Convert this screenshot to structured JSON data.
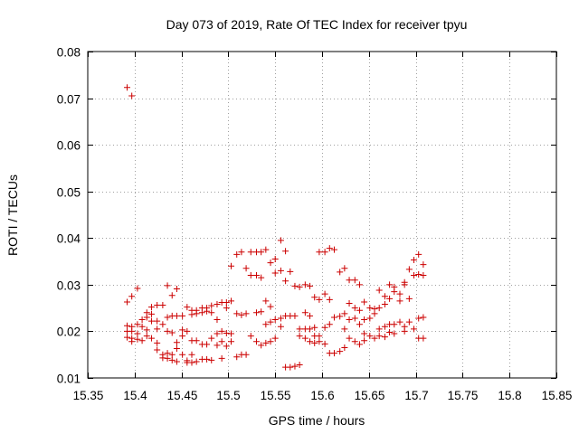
{
  "chart_data": {
    "type": "scatter",
    "title": "Day 073 of 2019, Rate Of TEC Index for receiver tpyu",
    "xlabel": "GPS time / hours",
    "ylabel": "ROTI / TECUs",
    "xlim": [
      15.35,
      15.85
    ],
    "ylim": [
      0.01,
      0.08
    ],
    "xticks": [
      15.35,
      15.4,
      15.45,
      15.5,
      15.55,
      15.6,
      15.65,
      15.7,
      15.75,
      15.8,
      15.85
    ],
    "xtick_labels": [
      "15.35",
      "15.4",
      "15.45",
      "15.5",
      "15.55",
      "15.6",
      "15.65",
      "15.7",
      "15.75",
      "15.8",
      "15.85"
    ],
    "yticks": [
      0.01,
      0.02,
      0.03,
      0.04,
      0.05,
      0.06,
      0.07,
      0.08
    ],
    "ytick_labels": [
      "0.01",
      "0.02",
      "0.03",
      "0.04",
      "0.05",
      "0.06",
      "0.07",
      "0.08"
    ],
    "grid": true,
    "marker": "+",
    "color": "#cc0000",
    "series": [
      {
        "name": "ROTI",
        "points": [
          [
            15.392,
            0.0723
          ],
          [
            15.397,
            0.0705
          ],
          [
            15.392,
            0.0263
          ],
          [
            15.397,
            0.0275
          ],
          [
            15.392,
            0.0212
          ],
          [
            15.392,
            0.02
          ],
          [
            15.392,
            0.0187
          ],
          [
            15.397,
            0.021
          ],
          [
            15.397,
            0.02
          ],
          [
            15.397,
            0.0185
          ],
          [
            15.397,
            0.0178
          ],
          [
            15.403,
            0.0292
          ],
          [
            15.403,
            0.0215
          ],
          [
            15.403,
            0.0195
          ],
          [
            15.403,
            0.0183
          ],
          [
            15.408,
            0.0225
          ],
          [
            15.408,
            0.021
          ],
          [
            15.408,
            0.018
          ],
          [
            15.413,
            0.024
          ],
          [
            15.413,
            0.023
          ],
          [
            15.413,
            0.0203
          ],
          [
            15.413,
            0.019
          ],
          [
            15.418,
            0.0252
          ],
          [
            15.418,
            0.0237
          ],
          [
            15.418,
            0.0222
          ],
          [
            15.418,
            0.0185
          ],
          [
            15.424,
            0.0256
          ],
          [
            15.424,
            0.0222
          ],
          [
            15.424,
            0.0205
          ],
          [
            15.424,
            0.0175
          ],
          [
            15.424,
            0.016
          ],
          [
            15.43,
            0.0256
          ],
          [
            15.43,
            0.0215
          ],
          [
            15.43,
            0.015
          ],
          [
            15.43,
            0.0143
          ],
          [
            15.435,
            0.0298
          ],
          [
            15.435,
            0.023
          ],
          [
            15.435,
            0.02
          ],
          [
            15.435,
            0.0153
          ],
          [
            15.435,
            0.0142
          ],
          [
            15.44,
            0.0277
          ],
          [
            15.44,
            0.0233
          ],
          [
            15.44,
            0.0197
          ],
          [
            15.44,
            0.015
          ],
          [
            15.44,
            0.0138
          ],
          [
            15.445,
            0.0291
          ],
          [
            15.445,
            0.0233
          ],
          [
            15.445,
            0.0176
          ],
          [
            15.445,
            0.0163
          ],
          [
            15.445,
            0.0135
          ],
          [
            15.451,
            0.0233
          ],
          [
            15.451,
            0.0203
          ],
          [
            15.451,
            0.019
          ],
          [
            15.451,
            0.015
          ],
          [
            15.456,
            0.0252
          ],
          [
            15.456,
            0.02
          ],
          [
            15.456,
            0.0137
          ],
          [
            15.456,
            0.0133
          ],
          [
            15.461,
            0.0245
          ],
          [
            15.461,
            0.0236
          ],
          [
            15.461,
            0.018
          ],
          [
            15.461,
            0.015
          ],
          [
            15.461,
            0.0133
          ],
          [
            15.466,
            0.0245
          ],
          [
            15.466,
            0.0238
          ],
          [
            15.466,
            0.018
          ],
          [
            15.466,
            0.0135
          ],
          [
            15.472,
            0.025
          ],
          [
            15.472,
            0.024
          ],
          [
            15.472,
            0.0172
          ],
          [
            15.472,
            0.014
          ],
          [
            15.477,
            0.025
          ],
          [
            15.477,
            0.0243
          ],
          [
            15.477,
            0.0172
          ],
          [
            15.477,
            0.014
          ],
          [
            15.482,
            0.0255
          ],
          [
            15.482,
            0.024
          ],
          [
            15.482,
            0.0185
          ],
          [
            15.482,
            0.0138
          ],
          [
            15.488,
            0.0258
          ],
          [
            15.488,
            0.0225
          ],
          [
            15.488,
            0.0195
          ],
          [
            15.488,
            0.017
          ],
          [
            15.493,
            0.0262
          ],
          [
            15.493,
            0.02
          ],
          [
            15.493,
            0.0178
          ],
          [
            15.493,
            0.0142
          ],
          [
            15.498,
            0.0262
          ],
          [
            15.498,
            0.025
          ],
          [
            15.498,
            0.0196
          ],
          [
            15.498,
            0.0168
          ],
          [
            15.503,
            0.034
          ],
          [
            15.503,
            0.0265
          ],
          [
            15.503,
            0.0195
          ],
          [
            15.503,
            0.0178
          ],
          [
            15.509,
            0.0365
          ],
          [
            15.509,
            0.0238
          ],
          [
            15.509,
            0.0145
          ],
          [
            15.514,
            0.037
          ],
          [
            15.514,
            0.0235
          ],
          [
            15.514,
            0.015
          ],
          [
            15.519,
            0.0335
          ],
          [
            15.519,
            0.0238
          ],
          [
            15.519,
            0.015
          ],
          [
            15.524,
            0.037
          ],
          [
            15.524,
            0.032
          ],
          [
            15.524,
            0.019
          ],
          [
            15.53,
            0.037
          ],
          [
            15.53,
            0.032
          ],
          [
            15.53,
            0.024
          ],
          [
            15.53,
            0.0178
          ],
          [
            15.535,
            0.037
          ],
          [
            15.535,
            0.0315
          ],
          [
            15.535,
            0.0242
          ],
          [
            15.535,
            0.017
          ],
          [
            15.54,
            0.0375
          ],
          [
            15.54,
            0.0265
          ],
          [
            15.54,
            0.0215
          ],
          [
            15.54,
            0.0175
          ],
          [
            15.545,
            0.0347
          ],
          [
            15.545,
            0.0253
          ],
          [
            15.545,
            0.022
          ],
          [
            15.545,
            0.0178
          ],
          [
            15.55,
            0.0355
          ],
          [
            15.55,
            0.0325
          ],
          [
            15.55,
            0.0225
          ],
          [
            15.55,
            0.0185
          ],
          [
            15.556,
            0.0395
          ],
          [
            15.556,
            0.033
          ],
          [
            15.556,
            0.0228
          ],
          [
            15.556,
            0.021
          ],
          [
            15.561,
            0.0372
          ],
          [
            15.561,
            0.0308
          ],
          [
            15.561,
            0.0233
          ],
          [
            15.561,
            0.0123
          ],
          [
            15.566,
            0.0328
          ],
          [
            15.566,
            0.0233
          ],
          [
            15.566,
            0.0123
          ],
          [
            15.571,
            0.0297
          ],
          [
            15.571,
            0.0233
          ],
          [
            15.571,
            0.0125
          ],
          [
            15.576,
            0.0295
          ],
          [
            15.576,
            0.0205
          ],
          [
            15.576,
            0.019
          ],
          [
            15.576,
            0.0128
          ],
          [
            15.582,
            0.03
          ],
          [
            15.582,
            0.024
          ],
          [
            15.582,
            0.0205
          ],
          [
            15.582,
            0.0185
          ],
          [
            15.587,
            0.0297
          ],
          [
            15.587,
            0.0233
          ],
          [
            15.587,
            0.0205
          ],
          [
            15.587,
            0.0178
          ],
          [
            15.592,
            0.0273
          ],
          [
            15.592,
            0.0208
          ],
          [
            15.592,
            0.019
          ],
          [
            15.592,
            0.0175
          ],
          [
            15.597,
            0.037
          ],
          [
            15.597,
            0.0268
          ],
          [
            15.597,
            0.019
          ],
          [
            15.597,
            0.0178
          ],
          [
            15.603,
            0.037
          ],
          [
            15.603,
            0.028
          ],
          [
            15.603,
            0.0208
          ],
          [
            15.603,
            0.0173
          ],
          [
            15.608,
            0.0378
          ],
          [
            15.608,
            0.0268
          ],
          [
            15.608,
            0.0215
          ],
          [
            15.608,
            0.0153
          ],
          [
            15.613,
            0.0375
          ],
          [
            15.613,
            0.023
          ],
          [
            15.613,
            0.0153
          ],
          [
            15.619,
            0.0327
          ],
          [
            15.619,
            0.0232
          ],
          [
            15.619,
            0.0157
          ],
          [
            15.624,
            0.0335
          ],
          [
            15.624,
            0.0238
          ],
          [
            15.624,
            0.0205
          ],
          [
            15.624,
            0.0165
          ],
          [
            15.629,
            0.031
          ],
          [
            15.629,
            0.026
          ],
          [
            15.629,
            0.0225
          ],
          [
            15.629,
            0.0185
          ],
          [
            15.635,
            0.031
          ],
          [
            15.635,
            0.025
          ],
          [
            15.635,
            0.0228
          ],
          [
            15.635,
            0.0178
          ],
          [
            15.64,
            0.03
          ],
          [
            15.64,
            0.0245
          ],
          [
            15.64,
            0.0215
          ],
          [
            15.64,
            0.0172
          ],
          [
            15.645,
            0.0263
          ],
          [
            15.645,
            0.0225
          ],
          [
            15.645,
            0.0195
          ],
          [
            15.645,
            0.018
          ],
          [
            15.651,
            0.025
          ],
          [
            15.651,
            0.0228
          ],
          [
            15.651,
            0.019
          ],
          [
            15.656,
            0.0248
          ],
          [
            15.656,
            0.0238
          ],
          [
            15.656,
            0.0185
          ],
          [
            15.661,
            0.0288
          ],
          [
            15.661,
            0.025
          ],
          [
            15.661,
            0.0205
          ],
          [
            15.661,
            0.019
          ],
          [
            15.667,
            0.0275
          ],
          [
            15.667,
            0.0258
          ],
          [
            15.667,
            0.021
          ],
          [
            15.667,
            0.0188
          ],
          [
            15.672,
            0.03
          ],
          [
            15.672,
            0.027
          ],
          [
            15.672,
            0.0215
          ],
          [
            15.672,
            0.0198
          ],
          [
            15.677,
            0.0295
          ],
          [
            15.677,
            0.0285
          ],
          [
            15.677,
            0.0215
          ],
          [
            15.677,
            0.0195
          ],
          [
            15.683,
            0.028
          ],
          [
            15.683,
            0.0265
          ],
          [
            15.683,
            0.022
          ],
          [
            15.688,
            0.0305
          ],
          [
            15.688,
            0.03
          ],
          [
            15.688,
            0.021
          ],
          [
            15.688,
            0.02
          ],
          [
            15.693,
            0.0333
          ],
          [
            15.693,
            0.027
          ],
          [
            15.693,
            0.022
          ],
          [
            15.698,
            0.0353
          ],
          [
            15.698,
            0.032
          ],
          [
            15.698,
            0.0205
          ],
          [
            15.703,
            0.0365
          ],
          [
            15.703,
            0.0322
          ],
          [
            15.703,
            0.0228
          ],
          [
            15.703,
            0.0185
          ],
          [
            15.708,
            0.0343
          ],
          [
            15.708,
            0.032
          ],
          [
            15.708,
            0.023
          ],
          [
            15.708,
            0.0185
          ]
        ]
      }
    ]
  }
}
